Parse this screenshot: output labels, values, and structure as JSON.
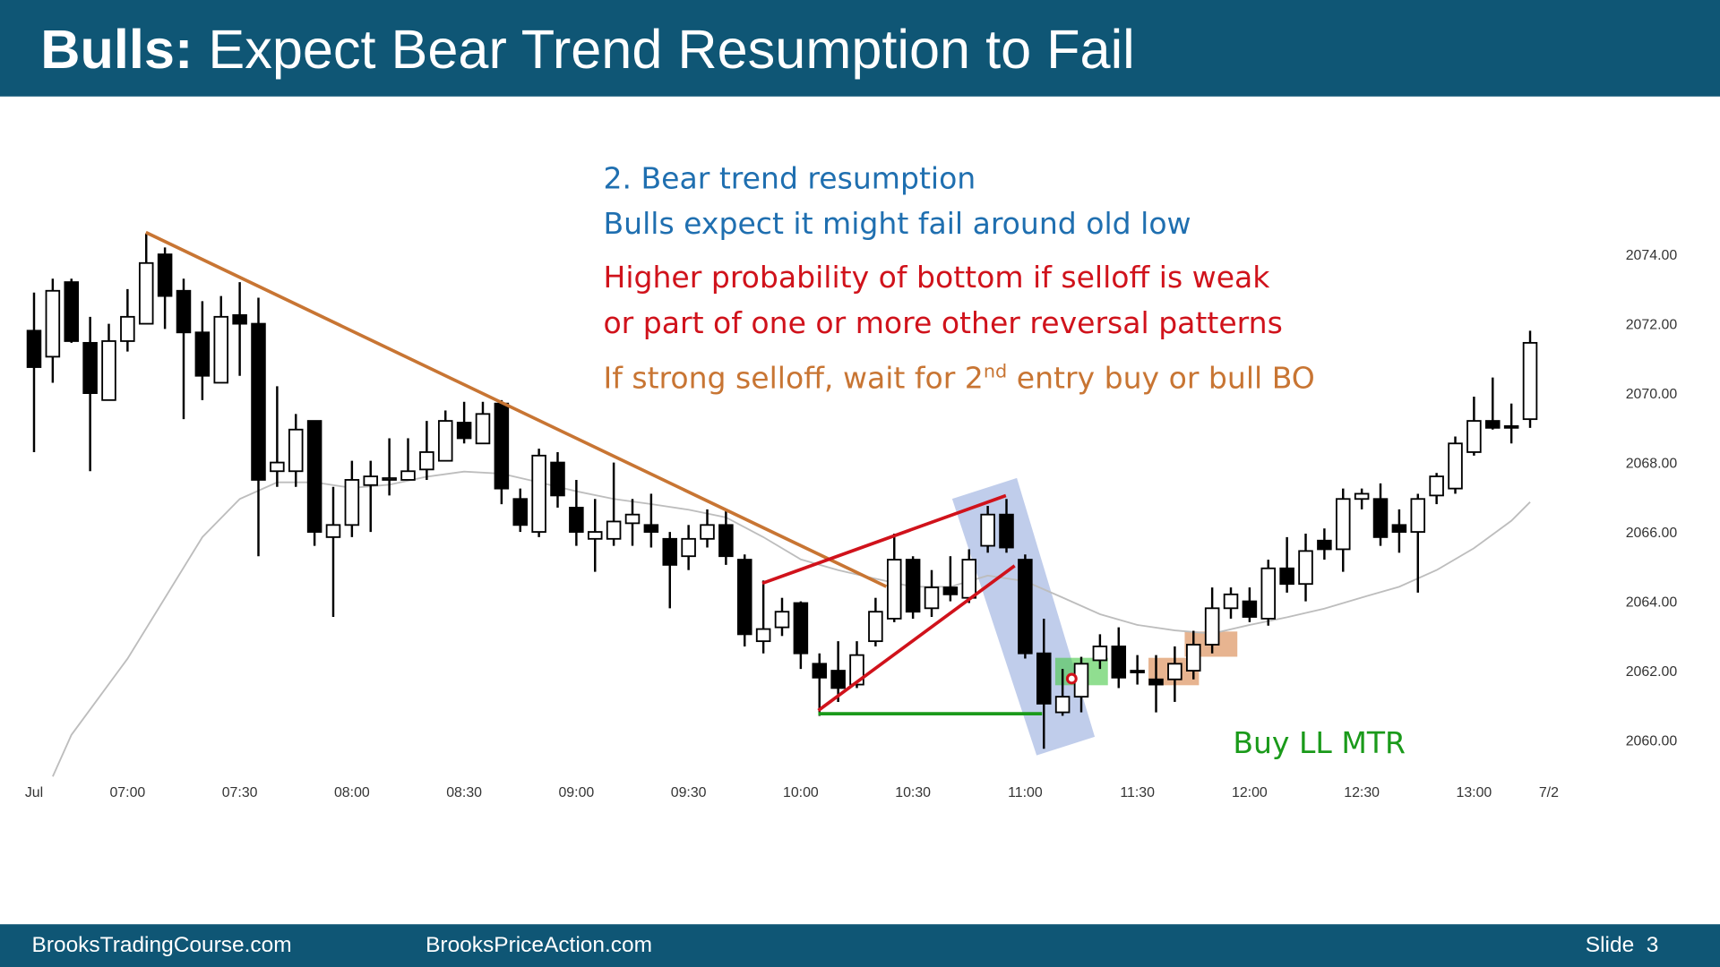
{
  "header": {
    "title_bold": "Bulls:",
    "title": "Expect Bear Trend Resumption to Fail"
  },
  "chart_data": {
    "type": "candlestick",
    "annotations": [
      {
        "text": "2. Bear trend resumption",
        "color": "#1f6fb0"
      },
      {
        "text": "Bulls expect it might fail around old low",
        "color": "#1f6fb0"
      },
      {
        "text": "Higher probability of bottom if selloff is weak",
        "color": "#d0121b"
      },
      {
        "text": "or part of one or more other reversal patterns",
        "color": "#d0121b"
      }
    ],
    "annotation_sup": {
      "before": "If strong selloff, wait for 2",
      "sup": "nd",
      "after": " entry buy or bull BO",
      "color": "#c87533"
    },
    "signal_label": {
      "text": "Buy LL MTR",
      "color": "#1a9a1a"
    },
    "open": [
      2071.8,
      2071.05,
      2073.2,
      2071.45,
      2069.8,
      2071.5,
      2072.0,
      2074.0,
      2072.95,
      2071.75,
      2070.3,
      2072.25,
      2072.0,
      2067.75,
      2067.75,
      2069.2,
      2065.85,
      2066.2,
      2067.35,
      2067.5,
      2067.5,
      2067.8,
      2068.05,
      2069.15,
      2068.55,
      2069.7,
      2066.95,
      2066.0,
      2068.0,
      2066.7,
      2065.8,
      2065.8,
      2066.25,
      2066.2,
      2065.8,
      2065.3,
      2065.8,
      2066.2,
      2065.2,
      2062.85,
      2063.25,
      2063.95,
      2062.2,
      2062.0,
      2061.6,
      2062.85,
      2063.5,
      2065.2,
      2063.8,
      2064.4,
      2064.1,
      2065.6,
      2066.5,
      2065.2,
      2062.5,
      2060.8,
      2061.25,
      2062.3,
      2062.7,
      2062.0,
      2061.75,
      2061.75,
      2062.0,
      2062.75,
      2063.8,
      2064.0,
      2063.5,
      2064.95,
      2064.5,
      2065.75,
      2065.5,
      2066.95,
      2066.95,
      2066.2,
      2066.0,
      2067.05,
      2067.25,
      2068.3,
      2069.2,
      2069.05,
      2069.25
    ],
    "high": [
      2072.9,
      2073.3,
      2073.3,
      2072.2,
      2072.0,
      2073.0,
      2074.6,
      2074.2,
      2073.3,
      2072.65,
      2072.8,
      2073.2,
      2072.75,
      2070.2,
      2069.4,
      2069.2,
      2067.3,
      2068.05,
      2068.05,
      2068.7,
      2068.7,
      2069.2,
      2069.5,
      2069.75,
      2069.75,
      2069.8,
      2067.25,
      2068.4,
      2068.3,
      2067.5,
      2066.95,
      2068.0,
      2066.95,
      2067.1,
      2066.0,
      2066.2,
      2066.65,
      2066.65,
      2065.35,
      2064.6,
      2064.1,
      2064.0,
      2062.5,
      2062.85,
      2062.85,
      2064.1,
      2065.95,
      2065.3,
      2064.9,
      2065.3,
      2065.5,
      2066.75,
      2066.95,
      2065.35,
      2063.5,
      2062.05,
      2062.4,
      2063.05,
      2063.25,
      2062.45,
      2062.45,
      2062.7,
      2063.15,
      2064.4,
      2064.4,
      2064.4,
      2065.2,
      2065.85,
      2065.95,
      2066.1,
      2067.25,
      2067.25,
      2067.4,
      2066.65,
      2067.1,
      2067.7,
      2068.75,
      2069.9,
      2070.45,
      2069.7,
      2071.8
    ],
    "low": [
      2068.3,
      2070.3,
      2071.45,
      2067.75,
      2069.8,
      2071.2,
      2072.0,
      2071.85,
      2069.25,
      2069.8,
      2070.3,
      2070.5,
      2065.3,
      2067.3,
      2067.3,
      2065.6,
      2063.55,
      2065.85,
      2066.0,
      2067.05,
      2067.5,
      2067.5,
      2068.05,
      2068.55,
      2068.55,
      2066.8,
      2066.0,
      2065.85,
      2066.7,
      2065.6,
      2064.85,
      2065.6,
      2065.6,
      2065.55,
      2063.8,
      2064.9,
      2065.55,
      2065.05,
      2062.7,
      2062.5,
      2063.0,
      2062.05,
      2060.7,
      2061.1,
      2061.5,
      2062.7,
      2063.4,
      2063.5,
      2063.55,
      2064.0,
      2063.95,
      2065.4,
      2065.4,
      2062.35,
      2059.75,
      2060.7,
      2060.8,
      2062.05,
      2061.5,
      2061.6,
      2060.8,
      2061.1,
      2061.75,
      2062.5,
      2063.5,
      2063.4,
      2063.3,
      2064.25,
      2064.0,
      2065.2,
      2064.85,
      2066.65,
      2065.6,
      2065.4,
      2064.25,
      2066.8,
      2067.1,
      2068.2,
      2068.95,
      2068.55,
      2069.0
    ],
    "close": [
      2070.75,
      2072.95,
      2071.5,
      2070.0,
      2071.5,
      2072.2,
      2073.75,
      2072.8,
      2071.75,
      2070.5,
      2072.2,
      2072.0,
      2067.5,
      2068.0,
      2068.95,
      2066.0,
      2066.2,
      2067.5,
      2067.6,
      2067.55,
      2067.75,
      2068.3,
      2069.2,
      2068.7,
      2069.4,
      2067.25,
      2066.2,
      2068.2,
      2067.05,
      2066.0,
      2066.0,
      2066.3,
      2066.5,
      2066.0,
      2065.05,
      2065.8,
      2066.2,
      2065.3,
      2063.05,
      2063.2,
      2063.7,
      2062.5,
      2061.8,
      2061.5,
      2062.45,
      2063.7,
      2065.2,
      2063.7,
      2064.4,
      2064.2,
      2065.2,
      2066.5,
      2065.55,
      2062.5,
      2061.05,
      2061.25,
      2062.2,
      2062.7,
      2061.8,
      2061.95,
      2061.6,
      2062.2,
      2062.75,
      2063.8,
      2064.2,
      2063.55,
      2064.95,
      2064.5,
      2065.45,
      2065.5,
      2066.95,
      2067.1,
      2065.85,
      2066.0,
      2066.95,
      2067.6,
      2068.55,
      2069.2,
      2069.0,
      2069.0,
      2071.45
    ],
    "up_color": "#ffffff",
    "down_color": "#000000",
    "moving_average": {
      "color": "#bdbdbd",
      "x": [
        1,
        2,
        5,
        7,
        9,
        11,
        13,
        15,
        17,
        19,
        21,
        23,
        25,
        27,
        29,
        31,
        33,
        35,
        37,
        39,
        41,
        43,
        45,
        47,
        49,
        51,
        53,
        55,
        57,
        59,
        61,
        63,
        65,
        67,
        69,
        71,
        73,
        75,
        77,
        79,
        80
      ],
      "values": [
        2058.95,
        2060.15,
        2062.35,
        2064.1,
        2065.85,
        2066.95,
        2067.43,
        2067.43,
        2067.27,
        2067.36,
        2067.59,
        2067.74,
        2067.68,
        2067.43,
        2067.17,
        2066.95,
        2066.8,
        2066.64,
        2066.42,
        2065.85,
        2065.21,
        2064.9,
        2064.65,
        2064.42,
        2064.42,
        2064.74,
        2064.58,
        2064.11,
        2063.63,
        2063.32,
        2063.16,
        2063.07,
        2063.32,
        2063.54,
        2063.79,
        2064.11,
        2064.42,
        2064.9,
        2065.53,
        2066.32,
        2066.86
      ]
    },
    "xlim": [
      -0.5,
      82.5
    ],
    "xticks": [
      {
        "value": 0,
        "label": "Jul"
      },
      {
        "value": 5,
        "label": "07:00"
      },
      {
        "value": 11,
        "label": "07:30"
      },
      {
        "value": 17,
        "label": "08:00"
      },
      {
        "value": 23,
        "label": "08:30"
      },
      {
        "value": 29,
        "label": "09:00"
      },
      {
        "value": 35,
        "label": "09:30"
      },
      {
        "value": 41,
        "label": "10:00"
      },
      {
        "value": 47,
        "label": "10:30"
      },
      {
        "value": 53,
        "label": "11:00"
      },
      {
        "value": 59,
        "label": "11:30"
      },
      {
        "value": 65,
        "label": "12:00"
      },
      {
        "value": 71,
        "label": "12:30"
      },
      {
        "value": 77,
        "label": "13:00"
      },
      {
        "value": 81,
        "label": "7/2"
      }
    ],
    "ylim": [
      2058.8,
      2075.4
    ],
    "yticks": [
      {
        "value": 2060,
        "label": "2060.00"
      },
      {
        "value": 2062,
        "label": "2062.00"
      },
      {
        "value": 2064,
        "label": "2064.00"
      },
      {
        "value": 2066,
        "label": "2066.00"
      },
      {
        "value": 2068,
        "label": "2068.00"
      },
      {
        "value": 2070,
        "label": "2070.00"
      },
      {
        "value": 2072,
        "label": "2072.00"
      },
      {
        "value": 2074,
        "label": "2074.00"
      }
    ],
    "grid": false
  },
  "footer": {
    "left": "BrooksTradingCourse.com",
    "center": "BrooksPriceAction.com",
    "slide": "Slide  3"
  }
}
